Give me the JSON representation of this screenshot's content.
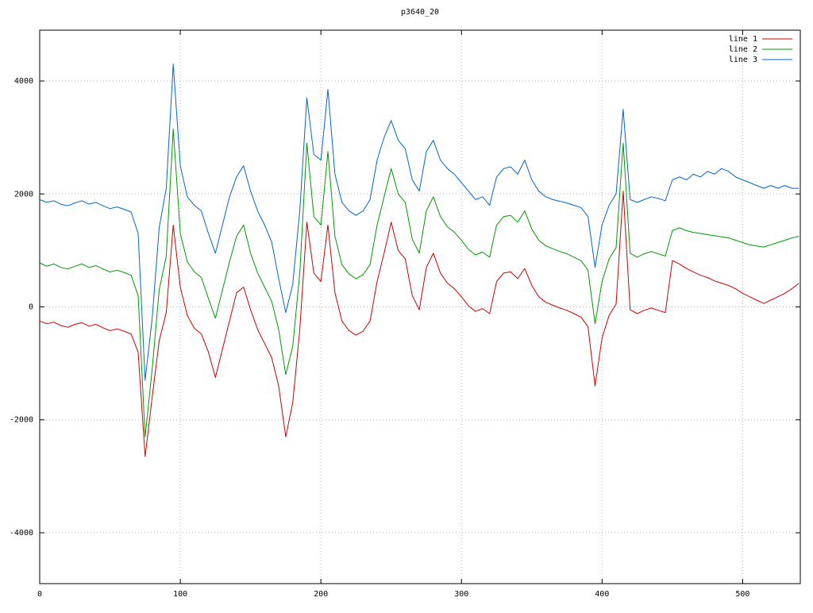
{
  "chart_data": {
    "type": "line",
    "title": "p3640_20",
    "xlabel": "",
    "ylabel": "",
    "xlim": [
      0,
      541
    ],
    "ylim": [
      -4900,
      4900
    ],
    "x_ticks": [
      0,
      100,
      200,
      300,
      400,
      500
    ],
    "y_ticks": [
      -4000,
      -2000,
      0,
      2000,
      4000
    ],
    "grid": true,
    "legend_position": "top-right",
    "x": [
      0,
      5,
      10,
      15,
      20,
      25,
      30,
      35,
      40,
      45,
      50,
      55,
      60,
      65,
      70,
      75,
      80,
      85,
      90,
      95,
      100,
      105,
      110,
      115,
      120,
      125,
      130,
      135,
      140,
      145,
      150,
      155,
      160,
      165,
      170,
      175,
      180,
      185,
      190,
      195,
      200,
      205,
      210,
      215,
      220,
      225,
      230,
      235,
      240,
      245,
      250,
      255,
      260,
      265,
      270,
      275,
      280,
      285,
      290,
      295,
      300,
      305,
      310,
      315,
      320,
      325,
      330,
      335,
      340,
      345,
      350,
      355,
      360,
      365,
      370,
      375,
      380,
      385,
      390,
      395,
      400,
      405,
      410,
      415,
      420,
      425,
      430,
      435,
      440,
      445,
      450,
      455,
      460,
      465,
      470,
      475,
      480,
      485,
      490,
      495,
      500,
      505,
      510,
      515,
      520,
      525,
      530,
      535,
      540
    ],
    "series": [
      {
        "name": "line 1",
        "color": "#cc0000",
        "values": [
          -250,
          -300,
          -270,
          -330,
          -360,
          -310,
          -280,
          -340,
          -310,
          -370,
          -420,
          -390,
          -430,
          -480,
          -800,
          -2650,
          -1600,
          -600,
          -100,
          1450,
          350,
          -150,
          -380,
          -480,
          -800,
          -1250,
          -750,
          -250,
          250,
          350,
          -50,
          -400,
          -650,
          -900,
          -1400,
          -2300,
          -1700,
          -400,
          1500,
          600,
          450,
          1450,
          250,
          -250,
          -420,
          -500,
          -430,
          -250,
          450,
          950,
          1500,
          1000,
          850,
          200,
          -50,
          700,
          950,
          600,
          420,
          320,
          180,
          20,
          -80,
          -30,
          -120,
          450,
          600,
          620,
          500,
          680,
          380,
          180,
          80,
          30,
          -20,
          -60,
          -120,
          -180,
          -350,
          -1400,
          -550,
          -150,
          50,
          2050,
          -50,
          -120,
          -60,
          -20,
          -60,
          -100,
          820,
          760,
          680,
          620,
          560,
          520,
          460,
          420,
          380,
          320,
          240,
          180,
          120,
          60,
          120,
          180,
          240,
          320,
          420
        ]
      },
      {
        "name": "line 2",
        "color": "#009900",
        "values": [
          780,
          720,
          760,
          700,
          670,
          720,
          760,
          700,
          730,
          670,
          620,
          650,
          610,
          560,
          200,
          -2300,
          -1100,
          300,
          900,
          3150,
          1300,
          800,
          620,
          520,
          150,
          -200,
          300,
          800,
          1250,
          1450,
          950,
          600,
          350,
          100,
          -400,
          -1200,
          -700,
          600,
          2900,
          1600,
          1450,
          2750,
          1250,
          750,
          580,
          500,
          570,
          750,
          1450,
          1950,
          2450,
          2000,
          1850,
          1200,
          950,
          1700,
          1950,
          1600,
          1420,
          1320,
          1180,
          1020,
          920,
          970,
          880,
          1450,
          1600,
          1620,
          1500,
          1700,
          1380,
          1180,
          1080,
          1030,
          980,
          940,
          880,
          820,
          650,
          -300,
          450,
          850,
          1050,
          2900,
          950,
          880,
          940,
          980,
          940,
          900,
          1350,
          1400,
          1350,
          1320,
          1300,
          1280,
          1260,
          1240,
          1220,
          1180,
          1140,
          1100,
          1080,
          1060,
          1100,
          1140,
          1180,
          1220,
          1250
        ]
      },
      {
        "name": "line 3",
        "color": "#0066cc",
        "values": [
          1900,
          1850,
          1880,
          1820,
          1790,
          1840,
          1880,
          1820,
          1850,
          1790,
          1740,
          1770,
          1730,
          1680,
          1300,
          -1300,
          -200,
          1400,
          2100,
          4300,
          2500,
          1950,
          1800,
          1700,
          1300,
          950,
          1450,
          1950,
          2300,
          2500,
          2050,
          1700,
          1450,
          1150,
          500,
          -100,
          400,
          1700,
          3700,
          2700,
          2600,
          3850,
          2350,
          1850,
          1700,
          1620,
          1700,
          1900,
          2600,
          3000,
          3300,
          2950,
          2800,
          2250,
          2050,
          2750,
          2950,
          2600,
          2450,
          2350,
          2200,
          2050,
          1900,
          1950,
          1800,
          2300,
          2450,
          2480,
          2350,
          2600,
          2250,
          2050,
          1950,
          1900,
          1870,
          1840,
          1800,
          1760,
          1600,
          700,
          1450,
          1800,
          2000,
          3500,
          1900,
          1850,
          1900,
          1950,
          1920,
          1880,
          2250,
          2300,
          2250,
          2350,
          2300,
          2400,
          2350,
          2450,
          2400,
          2300,
          2250,
          2200,
          2150,
          2100,
          2150,
          2100,
          2150,
          2100,
          2100
        ]
      }
    ]
  }
}
